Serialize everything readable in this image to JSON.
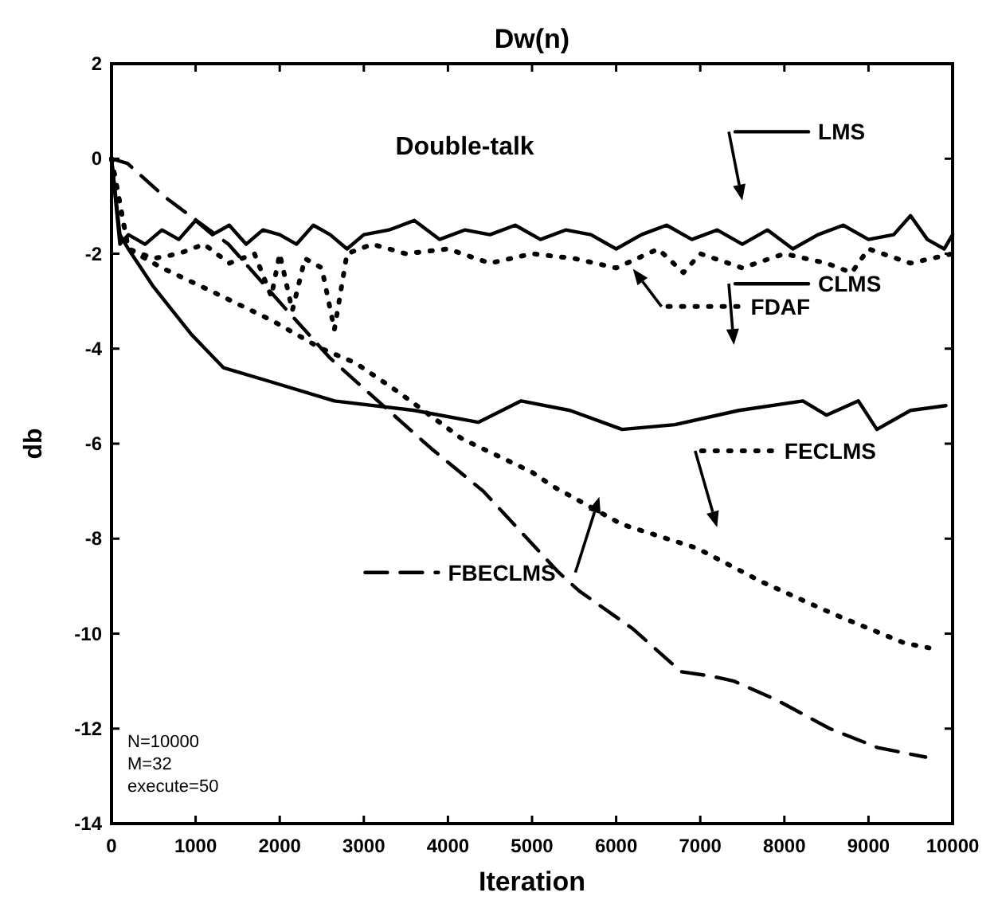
{
  "chart_data": {
    "type": "line",
    "title": "Dw(n)",
    "xlabel": "Iteration",
    "ylabel": "db",
    "xlim": [
      0,
      10000
    ],
    "ylim": [
      -14,
      2
    ],
    "xticks": [
      0,
      1000,
      2000,
      3000,
      4000,
      5000,
      6000,
      7000,
      8000,
      9000,
      10000
    ],
    "yticks": [
      2,
      0,
      -2,
      -4,
      -6,
      -8,
      -10,
      -12,
      -14
    ],
    "grid": false,
    "legend": "right",
    "marker": "none",
    "annotations": [
      "Double-talk",
      "N=10000",
      "M=32",
      "execute=50"
    ],
    "series": [
      {
        "name": "LMS",
        "color": "#000000",
        "line_style": "solid",
        "x": [
          0,
          100,
          200,
          400,
          600,
          800,
          1000,
          1200,
          1400,
          1600,
          1800,
          2000,
          2200,
          2400,
          2600,
          2800,
          3000,
          3300,
          3600,
          3900,
          4200,
          4500,
          4800,
          5100,
          5400,
          5700,
          6000,
          6300,
          6600,
          6900,
          7200,
          7500,
          7800,
          8100,
          8400,
          8700,
          9000,
          9300,
          9500,
          9700,
          9900,
          10000
        ],
        "values": [
          0,
          -1.8,
          -1.6,
          -1.8,
          -1.5,
          -1.7,
          -1.3,
          -1.6,
          -1.4,
          -1.8,
          -1.5,
          -1.6,
          -1.8,
          -1.4,
          -1.6,
          -1.9,
          -1.6,
          -1.5,
          -1.3,
          -1.7,
          -1.5,
          -1.6,
          -1.4,
          -1.7,
          -1.5,
          -1.6,
          -1.9,
          -1.6,
          -1.4,
          -1.7,
          -1.5,
          -1.8,
          -1.5,
          -1.9,
          -1.6,
          -1.4,
          -1.7,
          -1.6,
          -1.2,
          -1.7,
          -1.9,
          -1.6
        ]
      },
      {
        "name": "FDAF",
        "color": "#000000",
        "line_style": "dotted",
        "x": [
          0,
          200,
          500,
          800,
          1100,
          1400,
          1700,
          1900,
          2000,
          2150,
          2300,
          2500,
          2650,
          2800,
          3100,
          3500,
          4000,
          4500,
          5000,
          5500,
          6000,
          6500,
          6800,
          7000,
          7500,
          8000,
          8500,
          8800,
          9000,
          9500,
          10000
        ],
        "values": [
          0,
          -1.9,
          -2.1,
          -2.0,
          -1.8,
          -2.2,
          -2.0,
          -2.9,
          -2.0,
          -3.2,
          -2.1,
          -2.3,
          -3.6,
          -2.0,
          -1.8,
          -2.0,
          -1.9,
          -2.2,
          -2.0,
          -2.1,
          -2.3,
          -1.9,
          -2.4,
          -2.0,
          -2.3,
          -2.0,
          -2.2,
          -2.4,
          -1.9,
          -2.2,
          -2.0
        ]
      },
      {
        "name": "CLMS",
        "color": "#000000",
        "line_style": "solid",
        "x": [
          0,
          100,
          200,
          500,
          950,
          1330,
          1900,
          2650,
          3600,
          4360,
          4870,
          5450,
          6070,
          6700,
          7460,
          8220,
          8500,
          8880,
          9100,
          9500,
          9920
        ],
        "values": [
          0,
          -1.6,
          -1.9,
          -2.7,
          -3.7,
          -4.4,
          -4.7,
          -5.1,
          -5.3,
          -5.55,
          -5.1,
          -5.3,
          -5.7,
          -5.6,
          -5.3,
          -5.1,
          -5.4,
          -5.1,
          -5.7,
          -5.3,
          -5.2
        ]
      },
      {
        "name": "FECLMS",
        "color": "#000000",
        "line_style": "dotted",
        "x": [
          0,
          200,
          600,
          1200,
          1900,
          2500,
          2900,
          3400,
          4170,
          5000,
          5250,
          6070,
          6960,
          7720,
          8600,
          9430,
          9720
        ],
        "values": [
          0,
          -1.9,
          -2.3,
          -2.8,
          -3.4,
          -4.0,
          -4.3,
          -4.9,
          -5.9,
          -6.6,
          -6.9,
          -7.7,
          -8.2,
          -8.9,
          -9.6,
          -10.2,
          -10.3
        ]
      },
      {
        "name": "FBECLMS",
        "color": "#000000",
        "line_style": "dashed",
        "x": [
          0,
          190,
          630,
          1390,
          2090,
          2600,
          3040,
          3800,
          4420,
          5310,
          5560,
          6200,
          6770,
          7150,
          7400,
          7910,
          8540,
          9110,
          9680
        ],
        "values": [
          0,
          -0.1,
          -0.8,
          -1.8,
          -3.2,
          -4.2,
          -4.9,
          -6.1,
          -7.0,
          -8.7,
          -9.1,
          -9.9,
          -10.8,
          -10.9,
          -11.0,
          -11.4,
          -12.0,
          -12.4,
          -12.6
        ]
      }
    ]
  }
}
